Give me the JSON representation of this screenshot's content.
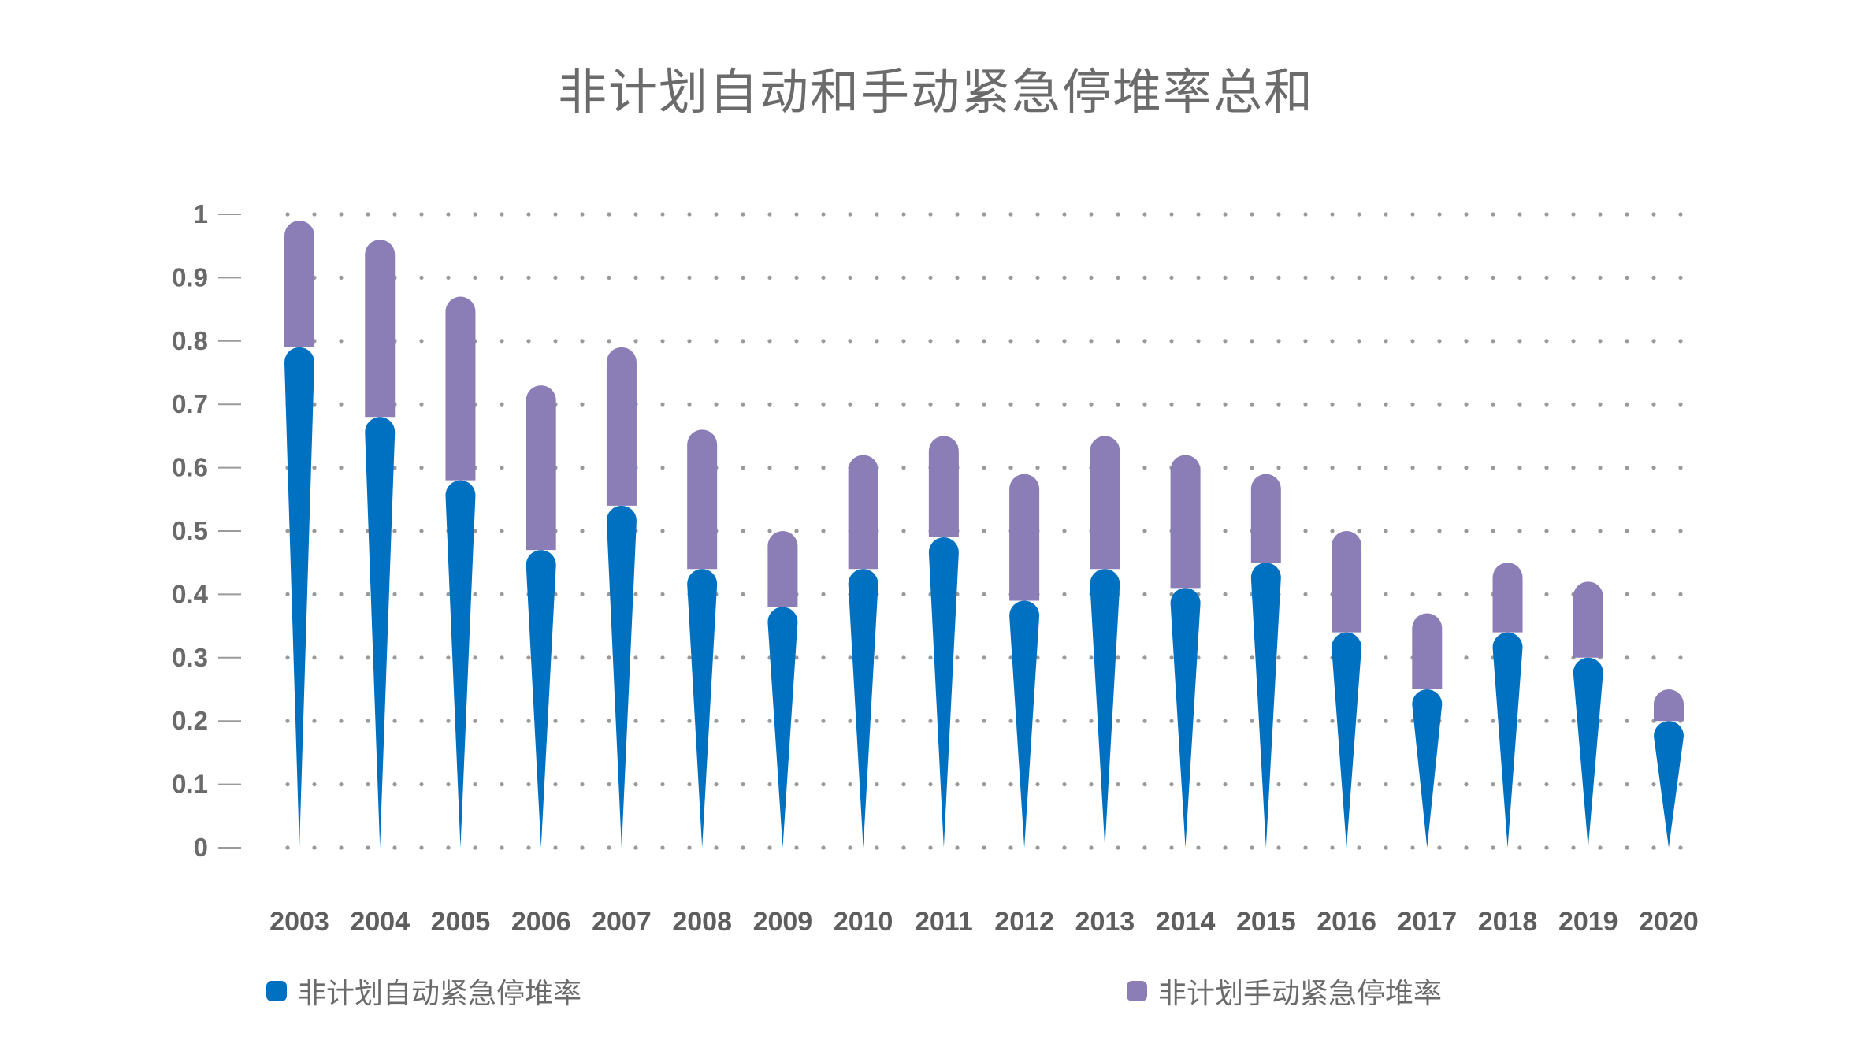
{
  "chart_data": {
    "type": "bar",
    "title": "非计划自动和手动紧急停堆率总和",
    "categories": [
      "2003",
      "2004",
      "2005",
      "2006",
      "2007",
      "2008",
      "2009",
      "2010",
      "2011",
      "2012",
      "2013",
      "2014",
      "2015",
      "2016",
      "2017",
      "2018",
      "2019",
      "2020"
    ],
    "series": [
      {
        "name": "非计划自动紧急停堆率",
        "color": "#0070C0",
        "values": [
          0.79,
          0.68,
          0.58,
          0.47,
          0.54,
          0.44,
          0.38,
          0.44,
          0.49,
          0.39,
          0.44,
          0.41,
          0.45,
          0.34,
          0.25,
          0.34,
          0.3,
          0.2
        ]
      },
      {
        "name": "非计划手动紧急停堆率",
        "color": "#8B7DB6",
        "values": [
          0.2,
          0.28,
          0.29,
          0.26,
          0.25,
          0.22,
          0.12,
          0.18,
          0.16,
          0.2,
          0.21,
          0.21,
          0.14,
          0.16,
          0.12,
          0.11,
          0.12,
          0.05
        ]
      }
    ],
    "stacked": true,
    "yticks": [
      "0",
      "0.1",
      "0.2",
      "0.3",
      "0.4",
      "0.5",
      "0.6",
      "0.7",
      "0.8",
      "0.9",
      "1"
    ],
    "ylim": [
      0,
      1
    ],
    "grid": "dotted",
    "legend": "bottom"
  }
}
